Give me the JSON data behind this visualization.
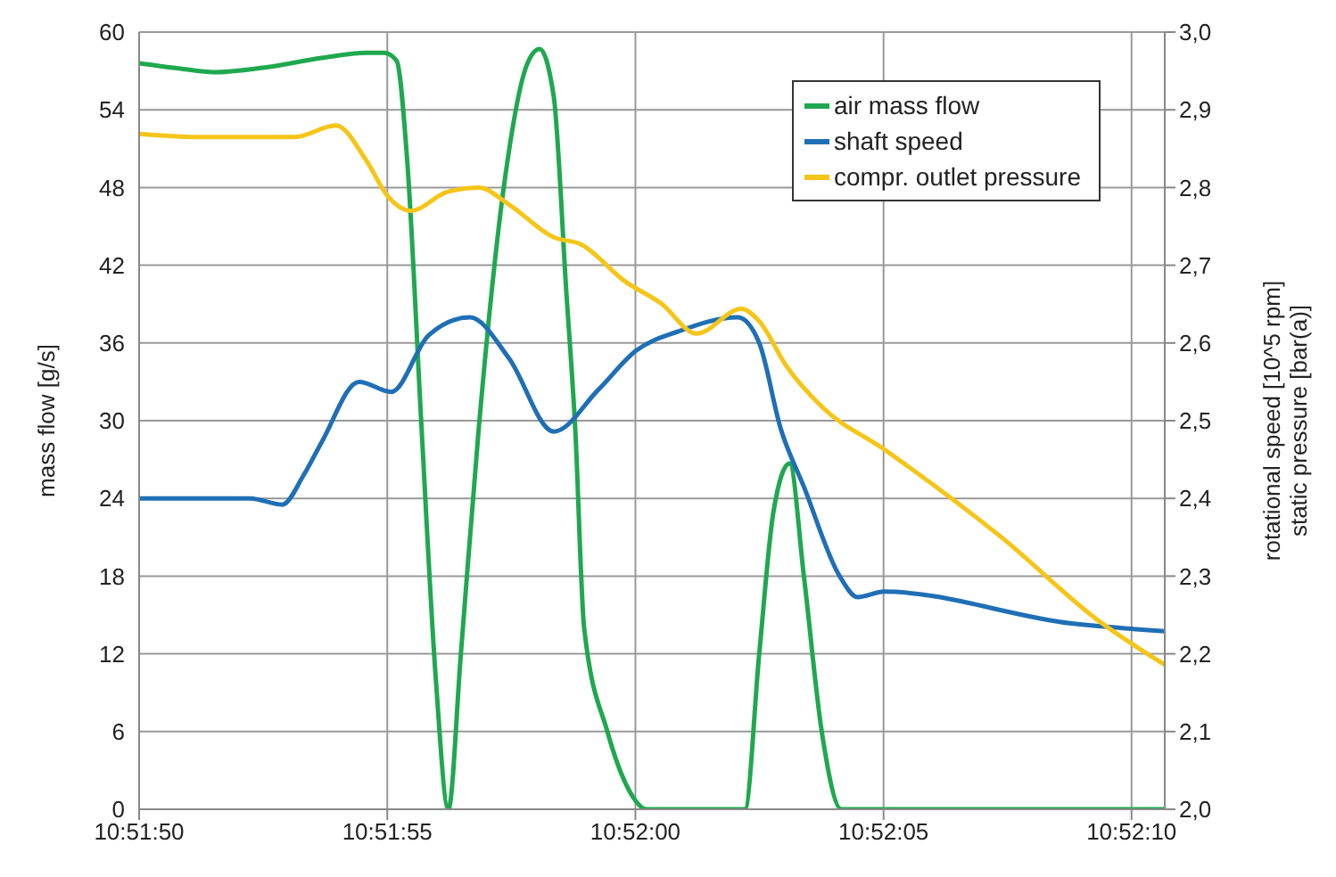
{
  "chart_data": {
    "type": "line",
    "ylabel": "mass flow [g/s]",
    "y2label": "rotational speed [10^5 rpm]\nstatic pressure [bar(a)]",
    "xlim": [
      10.863889,
      10.86963
    ],
    "xticks": [
      {
        "value": 10.863889,
        "label": "10:51:50"
      },
      {
        "value": 10.865278,
        "label": "10:51:55"
      },
      {
        "value": 10.866667,
        "label": "10:52:00"
      },
      {
        "value": 10.868056,
        "label": "10:52:05"
      },
      {
        "value": 10.869444,
        "label": "10:52:10"
      }
    ],
    "ylim": [
      0,
      60
    ],
    "yticks": [
      0,
      6,
      12,
      18,
      24,
      30,
      36,
      42,
      48,
      54,
      60
    ],
    "y2lim": [
      2.0,
      3.0
    ],
    "y2ticks": [
      {
        "value": 2.0,
        "label": "2,0"
      },
      {
        "value": 2.1,
        "label": "2,1"
      },
      {
        "value": 2.2,
        "label": "2,2"
      },
      {
        "value": 2.3,
        "label": "2,3"
      },
      {
        "value": 2.4,
        "label": "2,4"
      },
      {
        "value": 2.5,
        "label": "2,5"
      },
      {
        "value": 2.6,
        "label": "2,6"
      },
      {
        "value": 2.7,
        "label": "2,7"
      },
      {
        "value": 2.8,
        "label": "2,8"
      },
      {
        "value": 2.9,
        "label": "2,9"
      },
      {
        "value": 3.0,
        "label": "3,0"
      }
    ],
    "grid": true,
    "legend": "top right",
    "marker": "none",
    "series": [
      {
        "name": "air mass flow",
        "color": "#1fa84f",
        "x": [
          10.863889,
          10.86411,
          10.86431,
          10.86461,
          10.86491,
          10.86516,
          10.86526,
          10.86533,
          10.86539,
          10.86547,
          10.86555,
          10.86562,
          10.86569,
          10.86579,
          10.86593,
          10.86606,
          10.86613,
          10.86621,
          10.86628,
          10.86633,
          10.86638,
          10.86651,
          10.86663,
          10.86673,
          10.86728,
          10.86736,
          10.86744,
          10.86753,
          10.86761,
          10.86771,
          10.86782,
          10.86963
        ],
        "values": [
          57.6,
          57.2,
          56.9,
          57.3,
          58.0,
          58.4,
          58.4,
          57.8,
          50,
          29.4,
          10,
          0,
          12,
          29.4,
          48,
          57.5,
          58.7,
          55,
          40,
          29.4,
          14,
          6,
          1.5,
          0,
          0,
          12,
          23,
          26.7,
          18,
          6,
          0,
          0
        ]
      },
      {
        "name": "shaft speed",
        "color": "#1f6fb5",
        "axis": "y2",
        "x": [
          10.863889,
          10.86451,
          10.86469,
          10.86481,
          10.86491,
          10.86512,
          10.8653,
          10.86551,
          10.86574,
          10.86596,
          10.86621,
          10.86646,
          10.86667,
          10.86691,
          10.86724,
          10.86736,
          10.86748,
          10.86761,
          10.86781,
          10.86791,
          10.86806,
          10.86911,
          10.86963
        ],
        "values": [
          2.4,
          2.4,
          2.392,
          2.43,
          2.472,
          2.55,
          2.537,
          2.61,
          2.633,
          2.58,
          2.486,
          2.54,
          2.59,
          2.615,
          2.633,
          2.6,
          2.49,
          2.415,
          2.3,
          2.273,
          2.28,
          2.239,
          2.229
        ]
      },
      {
        "name": "compr. outlet pressure",
        "color": "#f5c518",
        "axis": "y2",
        "x": [
          10.863889,
          10.86421,
          10.86476,
          10.86499,
          10.86516,
          10.86528,
          10.86541,
          10.86561,
          10.86579,
          10.86596,
          10.86621,
          10.86636,
          10.86661,
          10.86681,
          10.86701,
          10.86726,
          10.86736,
          10.86751,
          10.86771,
          10.86806,
          10.86871,
          10.86928,
          10.86963
        ],
        "values": [
          2.869,
          2.865,
          2.865,
          2.88,
          2.835,
          2.789,
          2.77,
          2.794,
          2.8,
          2.778,
          2.736,
          2.727,
          2.679,
          2.651,
          2.612,
          2.644,
          2.628,
          2.571,
          2.518,
          2.463,
          2.351,
          2.239,
          2.186
        ]
      }
    ]
  }
}
